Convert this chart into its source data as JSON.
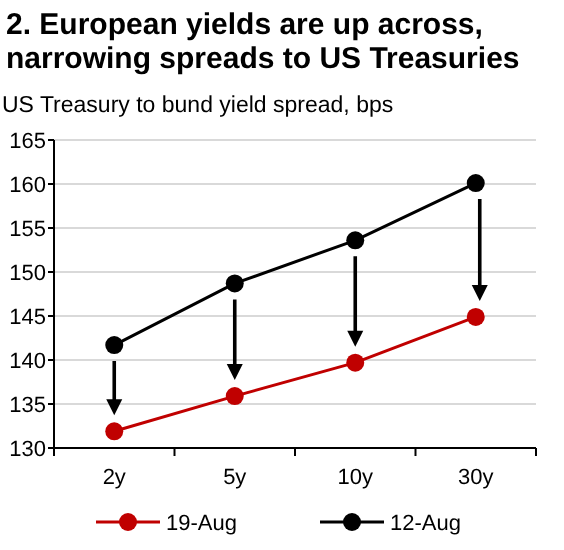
{
  "chart_data": {
    "type": "line",
    "title": "2. European yields are up across, narrowing spreads to US Treasuries",
    "subtitle": "US Treasury to bund yield spread, bps",
    "categories": [
      "2y",
      "5y",
      "10y",
      "30y"
    ],
    "series": [
      {
        "name": "19-Aug",
        "color": "#c00000",
        "values": [
          131.9,
          135.9,
          139.7,
          144.9
        ]
      },
      {
        "name": "12-Aug",
        "color": "#000000",
        "values": [
          141.7,
          148.7,
          153.6,
          160.1
        ]
      }
    ],
    "ylim": [
      130,
      165
    ],
    "yticks": [
      130,
      135,
      140,
      145,
      150,
      155,
      160,
      165
    ],
    "grid": "y",
    "legend": "bottom",
    "marker": "circle"
  }
}
